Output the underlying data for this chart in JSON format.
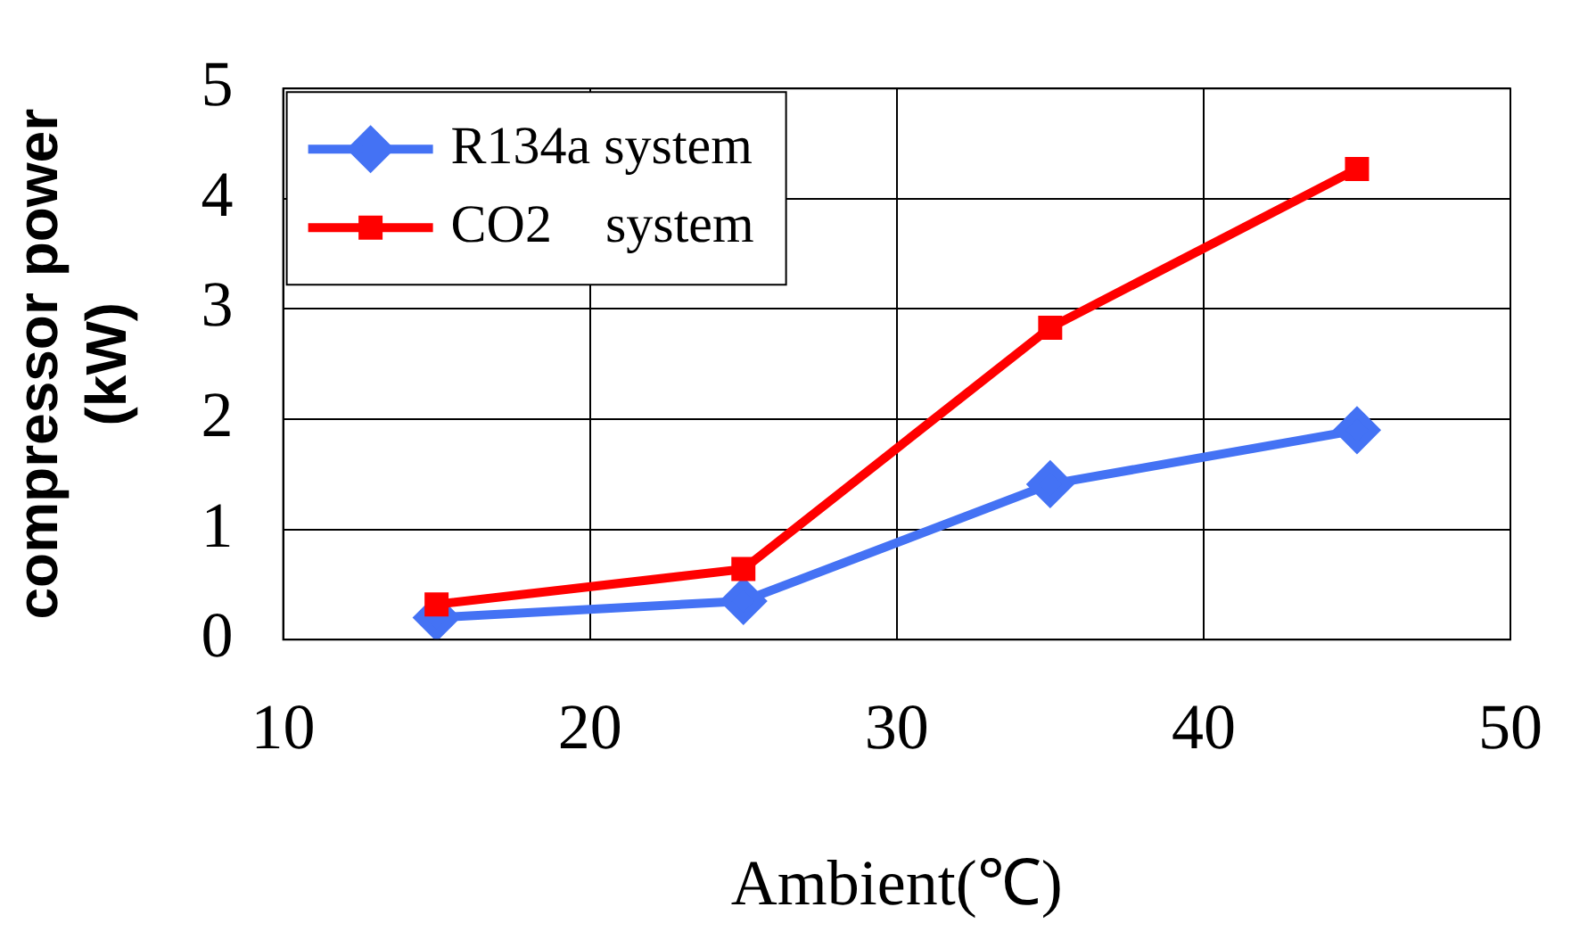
{
  "chart_data": {
    "type": "line",
    "xlabel": "Ambient(℃)",
    "ylabel": "compressor power (kW)",
    "x": [
      15,
      25,
      35,
      45
    ],
    "series": [
      {
        "name": "R134a system",
        "color": "#4472f4",
        "marker": "diamond",
        "values": [
          0.2,
          0.35,
          1.41,
          1.9
        ]
      },
      {
        "name": "CO2    system",
        "color": "#ff0000",
        "marker": "square",
        "values": [
          0.32,
          0.64,
          2.83,
          4.27
        ]
      }
    ],
    "xlim": [
      10,
      50
    ],
    "xticks": [
      10,
      20,
      30,
      40,
      50
    ],
    "ylim": [
      0,
      5
    ],
    "yticks": [
      0,
      1,
      2,
      3,
      4,
      5
    ],
    "grid": true,
    "legend": "top left",
    "line_style": "solid"
  }
}
